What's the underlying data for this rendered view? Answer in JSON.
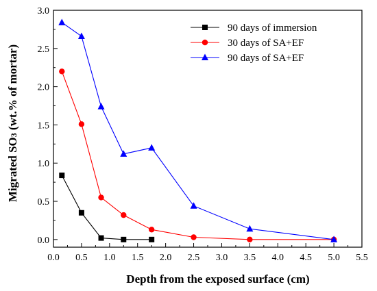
{
  "chart_data": {
    "type": "line",
    "title": "",
    "xlabel": "Depth from the exposed surface (cm)",
    "ylabel_parts": {
      "main": "Migrated SO",
      "sub": "3",
      "rest": " (wt.% of mortar)"
    },
    "xlim": [
      0.0,
      5.5
    ],
    "ylim": [
      -0.1,
      3.0
    ],
    "xticks": [
      "0.0",
      "0.5",
      "1.0",
      "1.5",
      "2.0",
      "2.5",
      "3.0",
      "3.5",
      "4.0",
      "4.5",
      "5.0",
      "5.5"
    ],
    "yticks": [
      "0.0",
      "0.5",
      "1.0",
      "1.5",
      "2.0",
      "2.5",
      "3.0"
    ],
    "grid": false,
    "legend_position": "top-right",
    "series": [
      {
        "name": "90 days of immersion",
        "color": "#000000",
        "marker": "square",
        "x": [
          0.15,
          0.5,
          0.85,
          1.25,
          1.75
        ],
        "y": [
          0.84,
          0.35,
          0.02,
          0.0,
          0.0
        ]
      },
      {
        "name": "30 days of SA+EF",
        "color": "#ff0000",
        "marker": "circle",
        "x": [
          0.15,
          0.5,
          0.85,
          1.25,
          1.75,
          2.5,
          3.5,
          5.0
        ],
        "y": [
          2.2,
          1.51,
          0.55,
          0.32,
          0.13,
          0.03,
          0.0,
          0.0
        ]
      },
      {
        "name": "90 days of SA+EF",
        "color": "#0000ff",
        "marker": "triangle",
        "x": [
          0.15,
          0.5,
          0.85,
          1.25,
          1.75,
          2.5,
          3.5,
          5.0
        ],
        "y": [
          2.84,
          2.66,
          1.74,
          1.12,
          1.2,
          0.44,
          0.14,
          0.0
        ]
      }
    ]
  }
}
